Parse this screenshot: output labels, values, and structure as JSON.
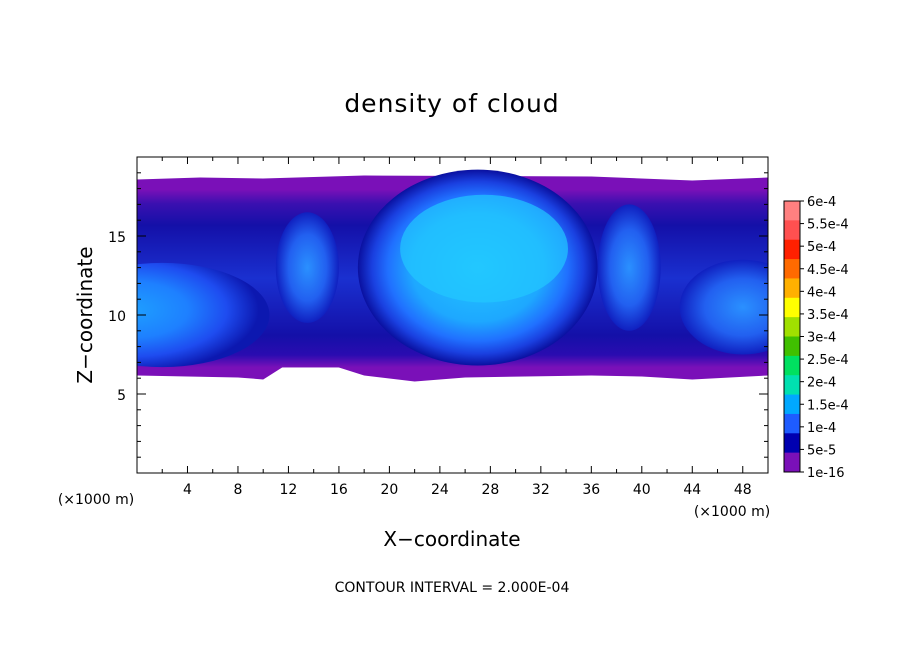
{
  "chart_data": {
    "type": "heatmap",
    "title": "density of cloud",
    "xlabel": "X−coordinate",
    "ylabel": "Z−coordinate",
    "x_unit": "(×1000 m)",
    "y_unit": "(×1000 m)",
    "xlim": [
      0,
      50
    ],
    "ylim": [
      0,
      20
    ],
    "x_ticks": [
      4,
      8,
      12,
      16,
      20,
      24,
      28,
      32,
      36,
      40,
      44,
      48
    ],
    "y_ticks": [
      5,
      10,
      15
    ],
    "x_tick_labels": [
      "4",
      "8",
      "12",
      "16",
      "20",
      "24",
      "28",
      "32",
      "36",
      "40",
      "44",
      "48"
    ],
    "y_tick_labels": [
      "5",
      "10",
      "15"
    ],
    "colorbar": {
      "labels": [
        "6e-4",
        "5.5e-4",
        "5e-4",
        "4.5e-4",
        "4e-4",
        "3.5e-4",
        "3e-4",
        "2.5e-4",
        "2e-4",
        "1.5e-4",
        "1e-4",
        "5e-5",
        "1e-16"
      ],
      "values": [
        0.0006,
        0.00055,
        0.0005,
        0.00045,
        0.0004,
        0.00035,
        0.0003,
        0.00025,
        0.0002,
        0.00015,
        0.0001,
        5e-05,
        1e-16
      ],
      "colors": [
        "#ff8080",
        "#ff5050",
        "#ff2000",
        "#ff6a00",
        "#ffb000",
        "#ffff00",
        "#a0e000",
        "#40c000",
        "#00e060",
        "#00e0b0",
        "#00a8ff",
        "#1e5cff",
        "#0000b0",
        "#7a10b8"
      ]
    },
    "footnote": "CONTOUR INTERVAL = 2.000E-04",
    "cloud": {
      "base_z": 6.3,
      "top_z": 18.7,
      "x_range": [
        0,
        50
      ],
      "cells": [
        {
          "name": "left-cell",
          "x_center": 2,
          "z_center": 10,
          "x_radius": 8.5,
          "z_radius": 3.3,
          "peak": 0.00013
        },
        {
          "name": "central-cell",
          "x_center": 27,
          "z_center": 13,
          "x_radius": 9.5,
          "z_radius": 6.2,
          "peak": 0.00017
        },
        {
          "name": "plume-14",
          "x_center": 13.5,
          "z_center": 13,
          "x_radius": 2.5,
          "z_radius": 3.5,
          "peak": 0.00012
        },
        {
          "name": "plume-38",
          "x_center": 39,
          "z_center": 13,
          "x_radius": 2.5,
          "z_radius": 4,
          "peak": 0.00013
        },
        {
          "name": "right-cell",
          "x_center": 48,
          "z_center": 10.5,
          "x_radius": 5,
          "z_radius": 3,
          "peak": 0.00012
        }
      ]
    },
    "grid": false,
    "legend": "right"
  }
}
